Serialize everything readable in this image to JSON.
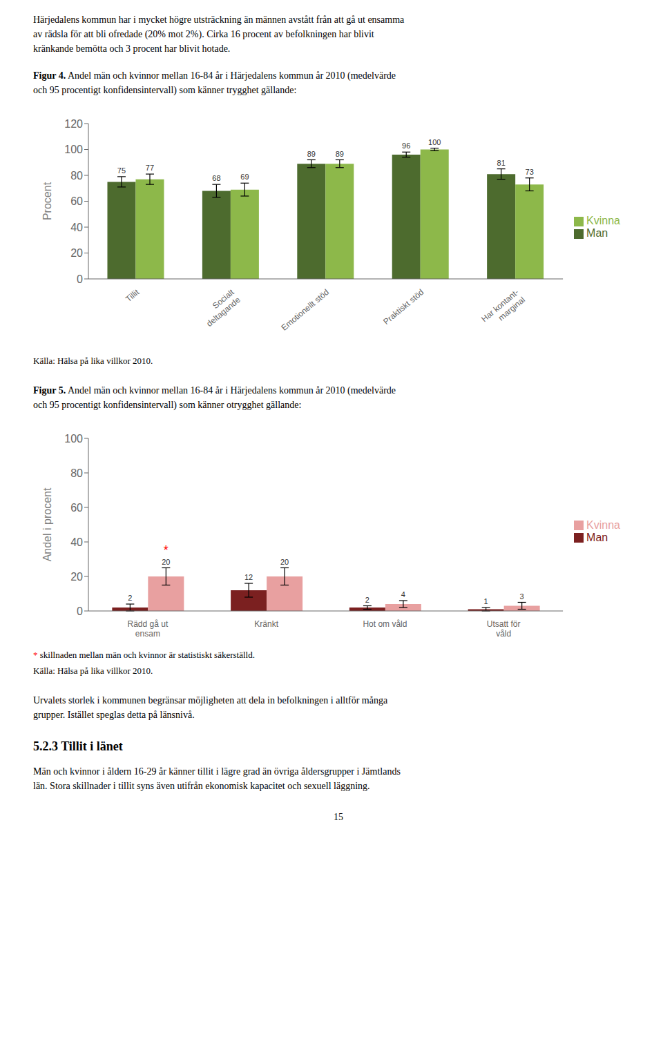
{
  "page": {
    "text_top": "Härjedalens kommun har i mycket högre utsträckning än männen avstått från att gå ut ensamma\nav rädsla för att bli ofredade (20% mot 2%). Cirka 16 procent av befolkningen har blivit\nkränkande bemötta och 3 procent har blivit hotade.",
    "bottom_text": "Urvalets storlek i kommunen begränsar möjligheten att dela in befolkningen i alltför många\ngrupper. Istället speglas detta på länsnivå.",
    "section_title": "5.2.3  Tillit i länet",
    "section_text": "Män och kvinnor i åldern 16-29 år känner tillit i lägre grad än övriga åldersgrupper i Jämtlands\nlän. Stora skillnader i tillit syns även utifrån ekonomisk kapacitet och sexuell läggning.",
    "page_number": "15"
  },
  "chart_data": [
    {
      "type": "bar",
      "title": "Figur 4.",
      "subtitle": "Andel män och kvinnor mellan 16-84 år i Härjedalens kommun år 2010 (medelvärde\noch 95 procentigt konfidensintervall) som känner trygghet gällande:",
      "categories": [
        "Tillit",
        "Socialt\ndeltagande",
        "Emotionellt stöd",
        "Praktiskt stöd",
        "Har kontant-\nmarginal"
      ],
      "series": [
        {
          "name": "Man",
          "color": "#4d6b2e",
          "values": [
            75,
            68,
            89,
            96,
            81
          ],
          "errors": [
            4,
            5,
            3,
            2,
            4
          ]
        },
        {
          "name": "Kvinna",
          "color": "#8db84a",
          "values": [
            77,
            69,
            89,
            100,
            73
          ],
          "errors": [
            4,
            5,
            3,
            1,
            5
          ]
        }
      ],
      "y_label": "Procent",
      "ylim": [
        0,
        120
      ],
      "yticks": [
        0,
        20,
        40,
        60,
        80,
        100,
        120
      ],
      "grid": false,
      "legend": "right",
      "data_labels": true,
      "source": "Källa: Hälsa på lika villkor 2010."
    },
    {
      "type": "bar",
      "title": "Figur 5.",
      "subtitle": "Andel män och kvinnor mellan 16-84 år i Härjedalens kommun år 2010 (medelvärde\noch 95 procentigt konfidensintervall) som känner otrygghet gällande:",
      "categories": [
        "Rädd gå ut\nensam",
        "Kränkt",
        "Hot om våld",
        "Utsatt för\nvåld"
      ],
      "series": [
        {
          "name": "Man",
          "color": "#7b2020",
          "values": [
            2,
            12,
            2,
            1
          ],
          "errors": [
            2,
            4,
            1,
            1
          ]
        },
        {
          "name": "Kvinna",
          "color": "#e8a0a0",
          "values": [
            20,
            20,
            4,
            3
          ],
          "errors": [
            5,
            5,
            2,
            2
          ]
        }
      ],
      "y_label": "Andel i procent",
      "ylim": [
        0,
        100
      ],
      "yticks": [
        0,
        20,
        40,
        60,
        80,
        100
      ],
      "grid": false,
      "legend": "right",
      "data_labels": true,
      "annotations": [
        {
          "text": "*",
          "color": "#ff0000",
          "series": "Kvinna",
          "category": "Rädd gå ut\nensam"
        }
      ],
      "notes": [
        "* skillnaden mellan män och kvinnor är statistiskt säkerställd."
      ],
      "source": "Källa: Hälsa på lika villkor 2010."
    }
  ]
}
